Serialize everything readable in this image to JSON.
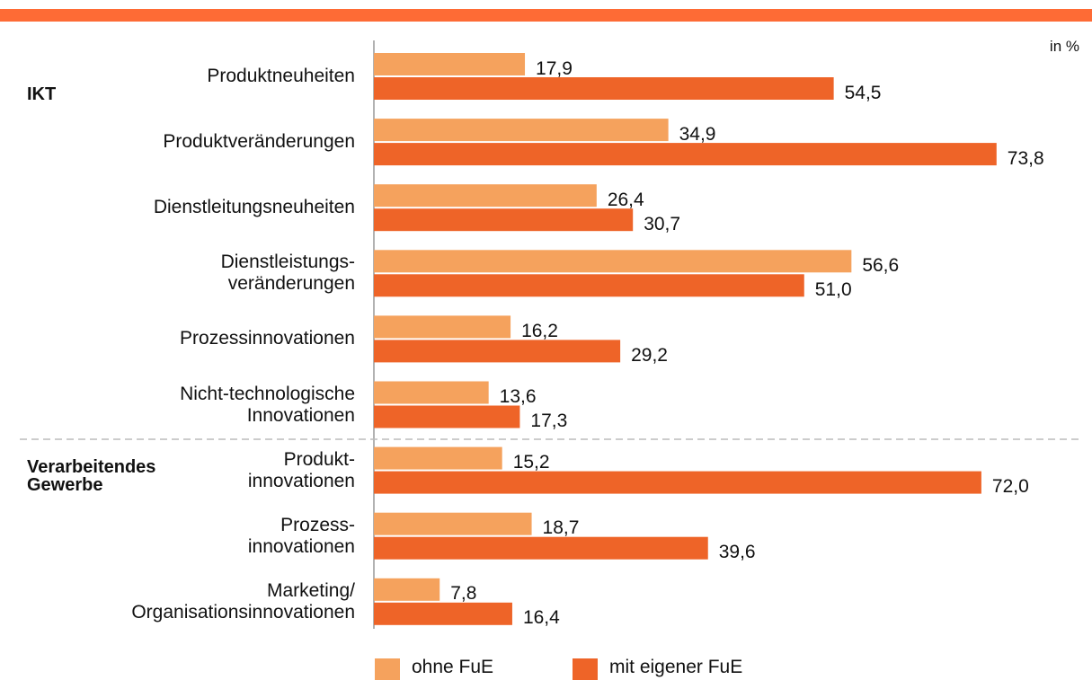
{
  "chart_data": {
    "type": "bar",
    "orientation": "horizontal",
    "unit_label": "in %",
    "groups": [
      "IKT",
      "Verarbeitendes\nGewerbe"
    ],
    "categories": [
      "Produktneuheiten",
      "Produktveränderungen",
      "Dienstleitungsneuheiten",
      "Dienstleistungs-\nveränderungen",
      "Prozessinnovationen",
      "Nicht-technologische\nInnovationen",
      "Produkt-\ninnovationen",
      "Prozess-\ninnovationen",
      "Marketing/\nOrganisationsinnovationen"
    ],
    "series": [
      {
        "name": "ohne FuE",
        "color": "#f5a25d",
        "values": [
          17.9,
          34.9,
          26.4,
          56.6,
          16.2,
          13.6,
          15.2,
          18.7,
          7.8
        ],
        "value_labels": [
          "17,9",
          "34,9",
          "26,4",
          "56,6",
          "16,2",
          "13,6",
          "15,2",
          "18,7",
          "7,8"
        ]
      },
      {
        "name": "mit eigener FuE",
        "color": "#ee6428",
        "values": [
          54.5,
          73.8,
          30.7,
          51.0,
          29.2,
          17.3,
          72.0,
          39.6,
          16.4
        ],
        "value_labels": [
          "54,5",
          "73,8",
          "30,7",
          "51,0",
          "29,2",
          "17,3",
          "72,0",
          "39,6",
          "16,4"
        ]
      }
    ],
    "xlim": [
      0,
      80
    ]
  }
}
